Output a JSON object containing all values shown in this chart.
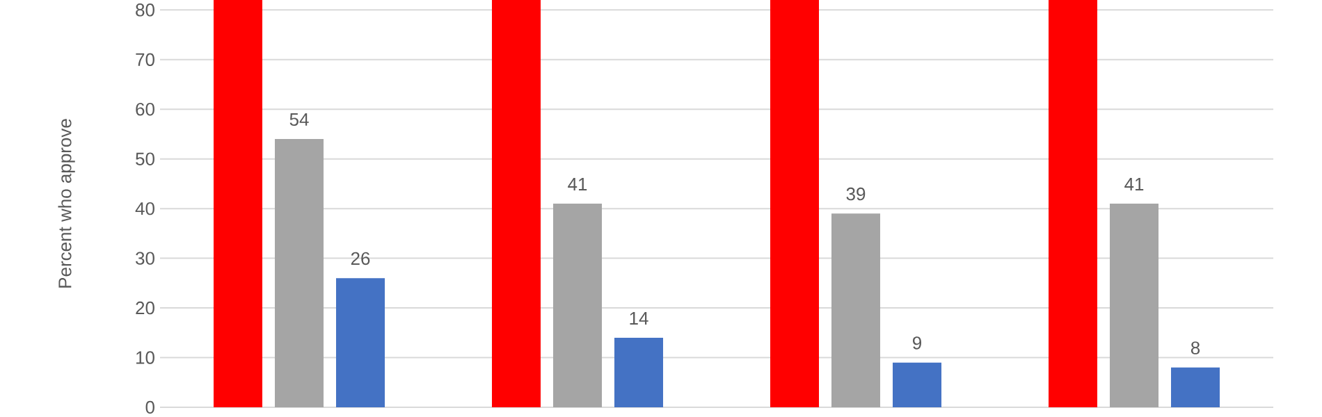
{
  "chart_data": {
    "type": "bar",
    "ylabel": "Percent who approve",
    "categories": [
      null,
      null,
      null,
      null
    ],
    "series": [
      {
        "color": "#ff0000",
        "values": [
          82,
          82,
          82,
          82
        ]
      },
      {
        "color": "#a5a5a5",
        "values": [
          54,
          41,
          39,
          41
        ],
        "value_labels": [
          "54",
          "41",
          "39",
          "41"
        ]
      },
      {
        "color": "#4472c4",
        "values": [
          26,
          14,
          9,
          8
        ],
        "value_labels": [
          "26",
          "14",
          "9",
          "8"
        ]
      }
    ],
    "ylim": [
      0,
      82
    ],
    "yticks": [
      0,
      10,
      20,
      30,
      40,
      50,
      60,
      70,
      80
    ],
    "grid": "y",
    "tick_labels": "y"
  }
}
